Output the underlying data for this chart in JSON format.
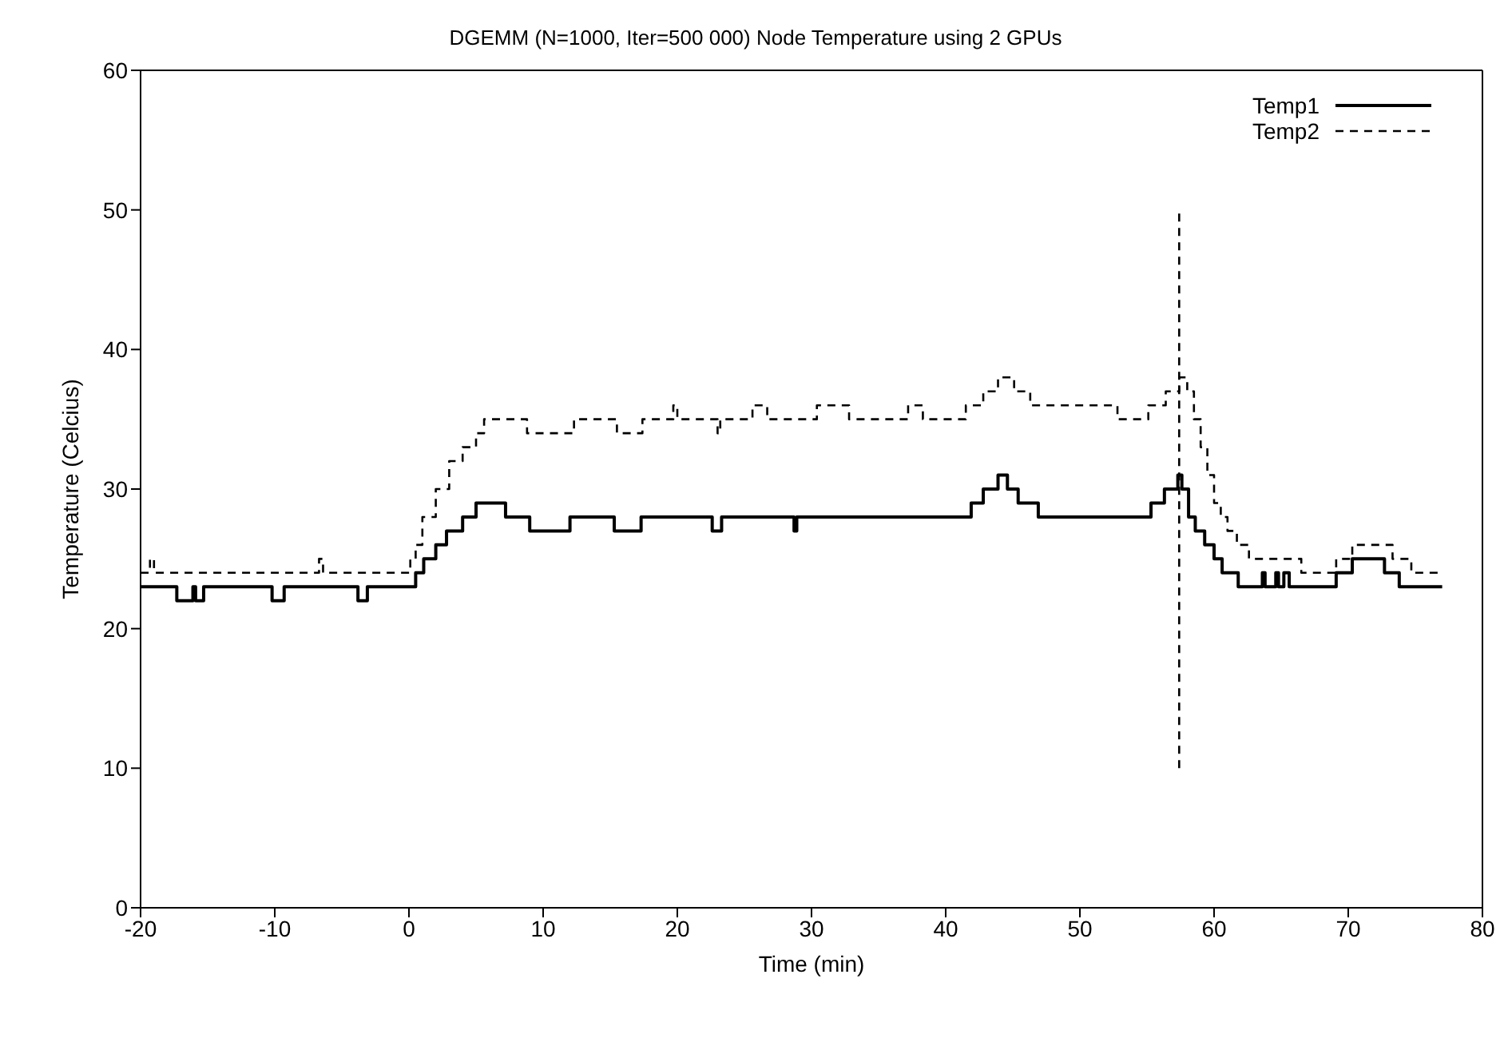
{
  "chart_data": {
    "type": "step",
    "title": "DGEMM (N=1000, Iter=500 000) Node Temperature using 2 GPUs",
    "xlabel": "Time (min)",
    "ylabel": "Temperature (Celcius)",
    "xlim": [
      -20,
      80
    ],
    "ylim": [
      0,
      60
    ],
    "xticks": [
      -20,
      -10,
      0,
      10,
      20,
      30,
      40,
      50,
      60,
      70,
      80
    ],
    "yticks": [
      0,
      10,
      20,
      30,
      40,
      50,
      60
    ],
    "legend": "top right",
    "series": [
      {
        "name": "Temp1",
        "color": "#000000",
        "line_style": "solid",
        "x": [
          -20,
          -17.3,
          -16.1,
          -15.9,
          -15.3,
          -10.2,
          -9.3,
          -3.8,
          -3.1,
          0.5,
          1.1,
          2,
          2.8,
          4,
          5,
          7.2,
          9,
          12,
          15.3,
          17.3,
          22.6,
          23.3,
          28.7,
          28.9,
          41.9,
          42.8,
          43.9,
          44.6,
          45.4,
          46.9,
          55.3,
          56.3,
          57.3,
          57.6,
          58.1,
          58.6,
          59.3,
          60,
          60.6,
          61.8,
          63.6,
          63.8,
          64.6,
          64.8,
          65.2,
          65.6,
          69.1,
          70.3,
          72.7,
          73.8,
          77
        ],
        "values": [
          23,
          22,
          23,
          22,
          23,
          22,
          23,
          22,
          23,
          24,
          25,
          26,
          27,
          28,
          29,
          28,
          27,
          28,
          27,
          28,
          27,
          28,
          27,
          28,
          29,
          30,
          31,
          30,
          29,
          28,
          29,
          30,
          31,
          30,
          28,
          27,
          26,
          25,
          24,
          23,
          24,
          23,
          24,
          23,
          24,
          23,
          24,
          25,
          24,
          23,
          23
        ]
      },
      {
        "name": "Temp2",
        "color": "#000000",
        "line_style": "dashed",
        "x": [
          -20,
          -19.3,
          -19,
          -6.7,
          -6.4,
          0.1,
          0.5,
          1,
          2,
          3,
          4,
          5,
          5.6,
          8.8,
          12.3,
          15.5,
          17.4,
          19.7,
          20,
          23,
          23.2,
          25.6,
          26.7,
          30.4,
          32.8,
          37.2,
          38.3,
          41.5,
          42.8,
          43.9,
          45.1,
          46.3,
          52.8,
          55.1,
          56.4,
          57.4,
          58,
          58.5,
          59,
          59.5,
          60,
          60.5,
          61,
          61.7,
          62.6,
          66.5,
          69.1,
          70.3,
          73.3,
          74.7,
          77
        ],
        "values": [
          24,
          25,
          24,
          25,
          24,
          25,
          26,
          28,
          30,
          32,
          33,
          34,
          35,
          34,
          35,
          34,
          35,
          36,
          35,
          34,
          35,
          36,
          35,
          36,
          35,
          36,
          35,
          36,
          37,
          38,
          37,
          36,
          35,
          36,
          37,
          38,
          37,
          35,
          33,
          31,
          29,
          28,
          27,
          26,
          25,
          24,
          25,
          26,
          25,
          24,
          24
        ]
      },
      {
        "color": "#000000",
        "line_style": "dashed",
        "x": [
          57.4,
          57.4
        ],
        "values": [
          10,
          50
        ]
      }
    ]
  }
}
